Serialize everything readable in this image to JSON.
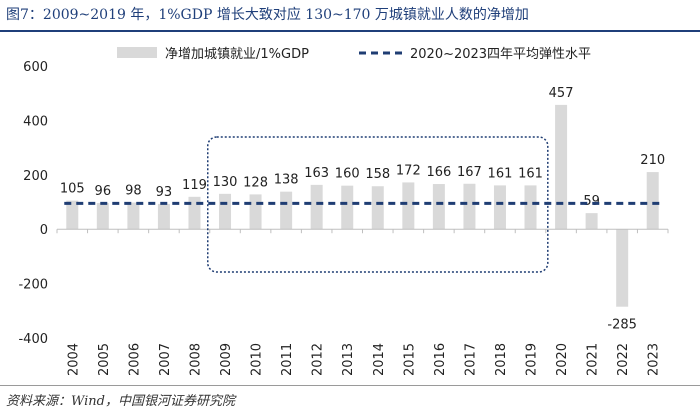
{
  "title": "图7：2009~2019 年，1%GDP 增长大致对应 130~170 万城镇就业人数的净增加",
  "source": "资料来源：Wind，中国银河证券研究院",
  "chart_data": {
    "type": "bar",
    "categories": [
      "2004",
      "2005",
      "2006",
      "2007",
      "2008",
      "2009",
      "2010",
      "2011",
      "2012",
      "2013",
      "2014",
      "2015",
      "2016",
      "2017",
      "2018",
      "2019",
      "2020",
      "2021",
      "2022",
      "2023"
    ],
    "series": [
      {
        "name": "净增加城镇就业/1%GDP",
        "kind": "bar",
        "values": [
          105,
          96,
          98,
          93,
          119,
          130,
          128,
          138,
          163,
          160,
          158,
          172,
          166,
          167,
          161,
          161,
          457,
          59,
          -285,
          210
        ]
      },
      {
        "name": "2020~2023四年平均弹性水平",
        "kind": "line-dashed",
        "value": 95
      }
    ],
    "data_labels": [
      "105",
      "96",
      "98",
      "93",
      "119",
      "130",
      "128",
      "138",
      "163",
      "160",
      "158",
      "172",
      "166",
      "167",
      "161",
      "161",
      "457",
      "59",
      "-285",
      "210"
    ],
    "y_ticks": [
      "600",
      "400",
      "200",
      "0",
      "-200",
      "-400"
    ],
    "ylim": [
      -400,
      600
    ],
    "highlight_range": [
      "2009",
      "2019"
    ],
    "colors": {
      "bar": "#d9d9d9",
      "line": "#1f3d73",
      "highlight": "#1f3d73",
      "axis": "#bfbfbf"
    }
  }
}
